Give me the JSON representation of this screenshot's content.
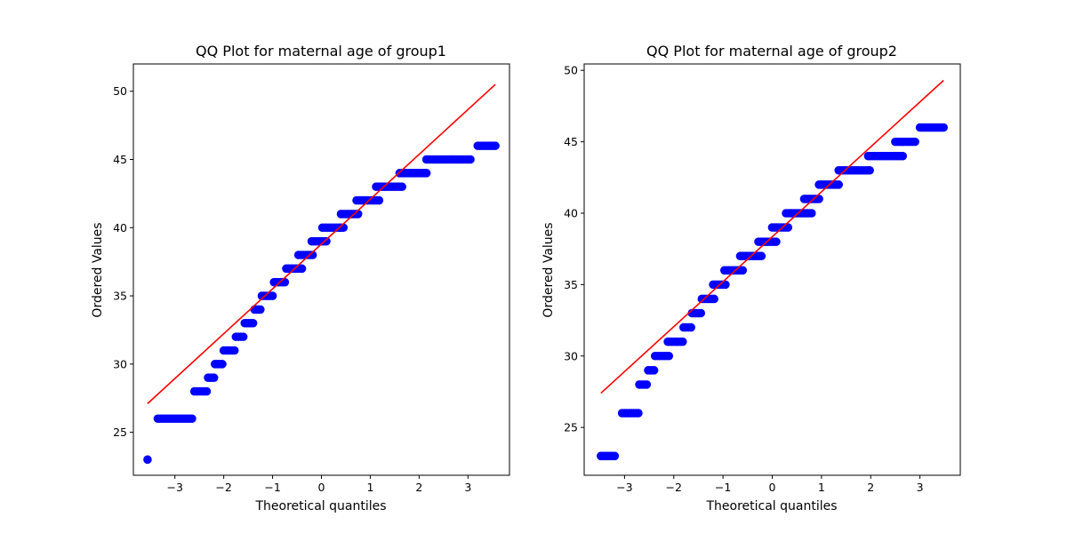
{
  "chart_data": [
    {
      "type": "scatter",
      "title": "QQ Plot for maternal age of group1",
      "xlabel": "Theoretical quantiles",
      "ylabel": "Ordered Values",
      "xlim": [
        -3.85,
        3.85
      ],
      "ylim": [
        21.85,
        52.0
      ],
      "xticks": [
        -3,
        -2,
        -1,
        0,
        1,
        2,
        3
      ],
      "yticks": [
        25,
        30,
        35,
        40,
        45,
        50
      ],
      "grid": false,
      "point_color": "#0000ff",
      "line_color": "#ff0000",
      "fit_line": {
        "x": [
          -3.56,
          3.56
        ],
        "y": [
          27.1,
          50.5
        ]
      },
      "steps": [
        {
          "y": 23,
          "x_start": -3.56,
          "x_end": -3.56
        },
        {
          "y": 26,
          "x_start": -3.35,
          "x_end": -2.65
        },
        {
          "y": 28,
          "x_start": -2.6,
          "x_end": -2.35
        },
        {
          "y": 29,
          "x_start": -2.32,
          "x_end": -2.2
        },
        {
          "y": 30,
          "x_start": -2.18,
          "x_end": -2.03
        },
        {
          "y": 31,
          "x_start": -2.0,
          "x_end": -1.78
        },
        {
          "y": 32,
          "x_start": -1.75,
          "x_end": -1.6
        },
        {
          "y": 33,
          "x_start": -1.57,
          "x_end": -1.4
        },
        {
          "y": 34,
          "x_start": -1.37,
          "x_end": -1.25
        },
        {
          "y": 35,
          "x_start": -1.22,
          "x_end": -1.0
        },
        {
          "y": 36,
          "x_start": -0.97,
          "x_end": -0.75
        },
        {
          "y": 37,
          "x_start": -0.72,
          "x_end": -0.4
        },
        {
          "y": 38,
          "x_start": -0.47,
          "x_end": -0.18
        },
        {
          "y": 39,
          "x_start": -0.2,
          "x_end": 0.1
        },
        {
          "y": 40,
          "x_start": 0.02,
          "x_end": 0.45
        },
        {
          "y": 41,
          "x_start": 0.4,
          "x_end": 0.75
        },
        {
          "y": 42,
          "x_start": 0.72,
          "x_end": 1.18
        },
        {
          "y": 43,
          "x_start": 1.12,
          "x_end": 1.65
        },
        {
          "y": 44,
          "x_start": 1.6,
          "x_end": 2.15
        },
        {
          "y": 45,
          "x_start": 2.15,
          "x_end": 3.05
        },
        {
          "y": 46,
          "x_start": 3.2,
          "x_end": 3.56
        }
      ]
    },
    {
      "type": "scatter",
      "title": "QQ Plot for maternal age of group2",
      "xlabel": "Theoretical quantiles",
      "ylabel": "Ordered Values",
      "xlim": [
        -3.82,
        3.82
      ],
      "ylim": [
        21.65,
        50.45
      ],
      "xticks": [
        -3,
        -2,
        -1,
        0,
        1,
        2,
        3
      ],
      "yticks": [
        25,
        30,
        35,
        40,
        45,
        50
      ],
      "grid": false,
      "point_color": "#0000ff",
      "line_color": "#ff0000",
      "fit_line": {
        "x": [
          -3.48,
          3.48
        ],
        "y": [
          27.4,
          49.3
        ]
      },
      "steps": [
        {
          "y": 23,
          "x_start": -3.48,
          "x_end": -3.2
        },
        {
          "y": 26,
          "x_start": -3.05,
          "x_end": -2.72
        },
        {
          "y": 28,
          "x_start": -2.7,
          "x_end": -2.55
        },
        {
          "y": 29,
          "x_start": -2.52,
          "x_end": -2.4
        },
        {
          "y": 30,
          "x_start": -2.38,
          "x_end": -2.1
        },
        {
          "y": 31,
          "x_start": -2.12,
          "x_end": -1.82
        },
        {
          "y": 32,
          "x_start": -1.8,
          "x_end": -1.65
        },
        {
          "y": 33,
          "x_start": -1.63,
          "x_end": -1.45
        },
        {
          "y": 34,
          "x_start": -1.43,
          "x_end": -1.18
        },
        {
          "y": 35,
          "x_start": -1.2,
          "x_end": -0.95
        },
        {
          "y": 36,
          "x_start": -0.97,
          "x_end": -0.6
        },
        {
          "y": 37,
          "x_start": -0.65,
          "x_end": -0.22
        },
        {
          "y": 38,
          "x_start": -0.28,
          "x_end": 0.08
        },
        {
          "y": 39,
          "x_start": 0.0,
          "x_end": 0.32
        },
        {
          "y": 40,
          "x_start": 0.28,
          "x_end": 0.8
        },
        {
          "y": 41,
          "x_start": 0.65,
          "x_end": 0.95
        },
        {
          "y": 42,
          "x_start": 0.95,
          "x_end": 1.35
        },
        {
          "y": 43,
          "x_start": 1.35,
          "x_end": 1.98
        },
        {
          "y": 44,
          "x_start": 1.95,
          "x_end": 2.65
        },
        {
          "y": 45,
          "x_start": 2.5,
          "x_end": 2.9
        },
        {
          "y": 46,
          "x_start": 3.0,
          "x_end": 3.48
        }
      ]
    }
  ]
}
